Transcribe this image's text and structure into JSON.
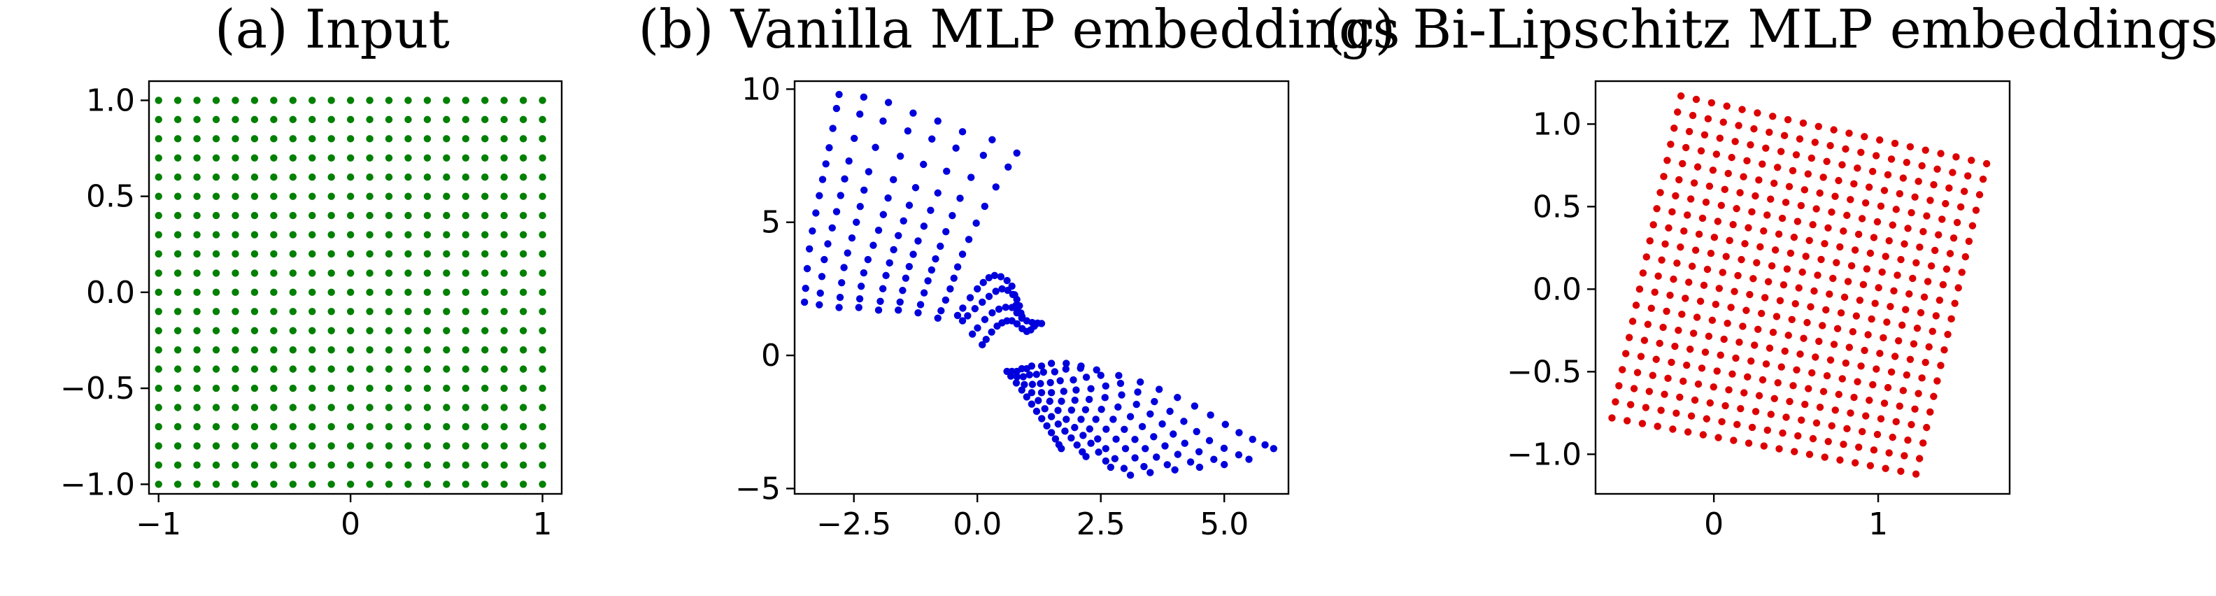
{
  "chart_data": [
    {
      "type": "scatter",
      "title": "(a) Input",
      "xlabel": "",
      "ylabel": "",
      "xlim": [
        -1.05,
        1.1
      ],
      "ylim": [
        -1.05,
        1.1
      ],
      "xticks": [
        {
          "value": -1,
          "label": "−1"
        },
        {
          "value": 0,
          "label": "0"
        },
        {
          "value": 1,
          "label": "1"
        }
      ],
      "yticks": [
        {
          "value": 1.0,
          "label": "1.0"
        },
        {
          "value": 0.5,
          "label": "0.5"
        },
        {
          "value": 0.0,
          "label": "0.0"
        },
        {
          "value": -0.5,
          "label": "−0.5"
        },
        {
          "value": -1.0,
          "label": "−1.0"
        }
      ],
      "grid": false,
      "series": [
        {
          "color": "#008000",
          "grid_points": {
            "x_range": [
              -1,
              1
            ],
            "y_range": [
              -1,
              1
            ],
            "n_x": 21,
            "n_y": 21
          }
        }
      ]
    },
    {
      "type": "scatter",
      "title": "(b) Vanilla MLP embeddings",
      "xlabel": "",
      "ylabel": "",
      "xlim": [
        -3.7,
        6.3
      ],
      "ylim": [
        -5.2,
        10.3
      ],
      "xticks": [
        {
          "value": -2.5,
          "label": "−2.5"
        },
        {
          "value": 0.0,
          "label": "0.0"
        },
        {
          "value": 2.5,
          "label": "2.5"
        },
        {
          "value": 5.0,
          "label": "5.0"
        }
      ],
      "yticks": [
        {
          "value": 10,
          "label": "10"
        },
        {
          "value": 5,
          "label": "5"
        },
        {
          "value": 0,
          "label": "0"
        },
        {
          "value": -5,
          "label": "−5"
        }
      ],
      "grid": false,
      "series": [
        {
          "color": "#0000dd",
          "curves": [
            [
              [
                -3.5,
                2.0
              ],
              [
                -3.4,
                4.0
              ],
              [
                -3.2,
                6.0
              ],
              [
                -3.0,
                7.8
              ],
              [
                -2.8,
                9.8
              ]
            ],
            [
              [
                -3.2,
                1.9
              ],
              [
                -3.1,
                3.6
              ],
              [
                -2.85,
                5.4
              ],
              [
                -2.6,
                7.3
              ],
              [
                -2.3,
                9.7
              ]
            ],
            [
              [
                -2.8,
                1.8
              ],
              [
                -2.7,
                3.3
              ],
              [
                -2.45,
                5.0
              ],
              [
                -2.2,
                6.9
              ],
              [
                -1.8,
                9.5
              ]
            ],
            [
              [
                -2.4,
                1.8
              ],
              [
                -2.3,
                3.1
              ],
              [
                -2.0,
                4.7
              ],
              [
                -1.7,
                6.6
              ],
              [
                -1.3,
                9.1
              ]
            ],
            [
              [
                -2.0,
                1.7
              ],
              [
                -1.85,
                3.0
              ],
              [
                -1.6,
                4.5
              ],
              [
                -1.25,
                6.3
              ],
              [
                -0.8,
                8.8
              ]
            ],
            [
              [
                -1.6,
                1.7
              ],
              [
                -1.45,
                2.9
              ],
              [
                -1.2,
                4.3
              ],
              [
                -0.8,
                6.1
              ],
              [
                -0.3,
                8.4
              ]
            ],
            [
              [
                -1.2,
                1.6
              ],
              [
                -1.0,
                2.8
              ],
              [
                -0.75,
                4.1
              ],
              [
                -0.35,
                5.9
              ],
              [
                0.3,
                8.1
              ]
            ],
            [
              [
                -0.8,
                1.4
              ],
              [
                -0.55,
                2.5
              ],
              [
                -0.3,
                3.8
              ],
              [
                0.15,
                5.6
              ],
              [
                0.8,
                7.6
              ]
            ],
            [
              [
                -0.4,
                1.5
              ],
              [
                0.0,
                2.5
              ],
              [
                0.35,
                3.0
              ],
              [
                0.7,
                2.6
              ],
              [
                0.8,
                1.6
              ]
            ],
            [
              [
                -0.3,
                1.3
              ],
              [
                0.1,
                2.0
              ],
              [
                0.5,
                2.5
              ],
              [
                0.8,
                2.1
              ],
              [
                0.9,
                1.4
              ]
            ],
            [
              [
                -0.1,
                0.8
              ],
              [
                0.3,
                1.6
              ],
              [
                0.7,
                1.8
              ],
              [
                1.0,
                1.3
              ],
              [
                1.3,
                1.2
              ]
            ],
            [
              [
                0.1,
                0.4
              ],
              [
                0.4,
                1.1
              ],
              [
                0.7,
                1.3
              ],
              [
                1.0,
                0.9
              ],
              [
                1.2,
                1.2
              ]
            ]
          ],
          "points_per_curve": 13
        },
        {
          "color": "#0000dd",
          "curves": [
            [
              [
                0.6,
                -0.6
              ],
              [
                0.9,
                -1.3
              ],
              [
                1.2,
                -2.1
              ],
              [
                1.5,
                -2.9
              ],
              [
                1.7,
                -3.5
              ]
            ],
            [
              [
                0.7,
                -0.6
              ],
              [
                1.1,
                -1.4
              ],
              [
                1.5,
                -2.3
              ],
              [
                1.9,
                -3.1
              ],
              [
                2.2,
                -3.8
              ]
            ],
            [
              [
                0.8,
                -0.6
              ],
              [
                1.3,
                -1.4
              ],
              [
                1.8,
                -2.4
              ],
              [
                2.3,
                -3.3
              ],
              [
                2.7,
                -4.2
              ]
            ],
            [
              [
                0.9,
                -0.5
              ],
              [
                1.5,
                -1.4
              ],
              [
                2.1,
                -2.4
              ],
              [
                2.6,
                -3.5
              ],
              [
                3.1,
                -4.5
              ]
            ],
            [
              [
                1.0,
                -0.5
              ],
              [
                1.75,
                -1.35
              ],
              [
                2.4,
                -2.4
              ],
              [
                3.0,
                -3.5
              ],
              [
                3.5,
                -4.4
              ]
            ],
            [
              [
                1.1,
                -0.4
              ],
              [
                2.0,
                -1.3
              ],
              [
                2.75,
                -2.4
              ],
              [
                3.4,
                -3.5
              ],
              [
                4.0,
                -4.3
              ]
            ],
            [
              [
                1.3,
                -0.4
              ],
              [
                2.3,
                -1.25
              ],
              [
                3.1,
                -2.3
              ],
              [
                3.8,
                -3.4
              ],
              [
                4.5,
                -4.2
              ]
            ],
            [
              [
                1.5,
                -0.3
              ],
              [
                2.6,
                -1.15
              ],
              [
                3.5,
                -2.2
              ],
              [
                4.2,
                -3.3
              ],
              [
                5.0,
                -4.1
              ]
            ],
            [
              [
                1.8,
                -0.3
              ],
              [
                2.9,
                -1.05
              ],
              [
                3.9,
                -2.1
              ],
              [
                4.7,
                -3.2
              ],
              [
                5.5,
                -3.9
              ]
            ],
            [
              [
                2.1,
                -0.4
              ],
              [
                3.3,
                -1.0
              ],
              [
                4.4,
                -1.9
              ],
              [
                5.3,
                -2.9
              ],
              [
                6.0,
                -3.5
              ]
            ]
          ],
          "points_per_curve": 13
        }
      ]
    },
    {
      "type": "scatter",
      "title": "(c) Bi-Lipschitz MLP embeddings",
      "xlabel": "",
      "ylabel": "",
      "xlim": [
        -0.72,
        1.8
      ],
      "ylim": [
        -1.24,
        1.26
      ],
      "xticks": [
        {
          "value": 0,
          "label": "0"
        },
        {
          "value": 1,
          "label": "1"
        }
      ],
      "yticks": [
        {
          "value": 1.0,
          "label": "1.0"
        },
        {
          "value": 0.5,
          "label": "0.5"
        },
        {
          "value": 0.0,
          "label": "0.0"
        },
        {
          "value": -0.5,
          "label": "−0.5"
        },
        {
          "value": -1.0,
          "label": "−1.0"
        }
      ],
      "grid": false,
      "series": [
        {
          "color": "#dd0000",
          "warped_grid": {
            "corners": {
              "top_left": [
                -0.2,
                1.17
              ],
              "top_right": [
                1.66,
                0.76
              ],
              "bottom_left": [
                -0.62,
                -0.78
              ],
              "bottom_right": [
                1.23,
                -1.12
              ]
            },
            "n_u": 21,
            "n_v": 21
          }
        }
      ]
    }
  ]
}
